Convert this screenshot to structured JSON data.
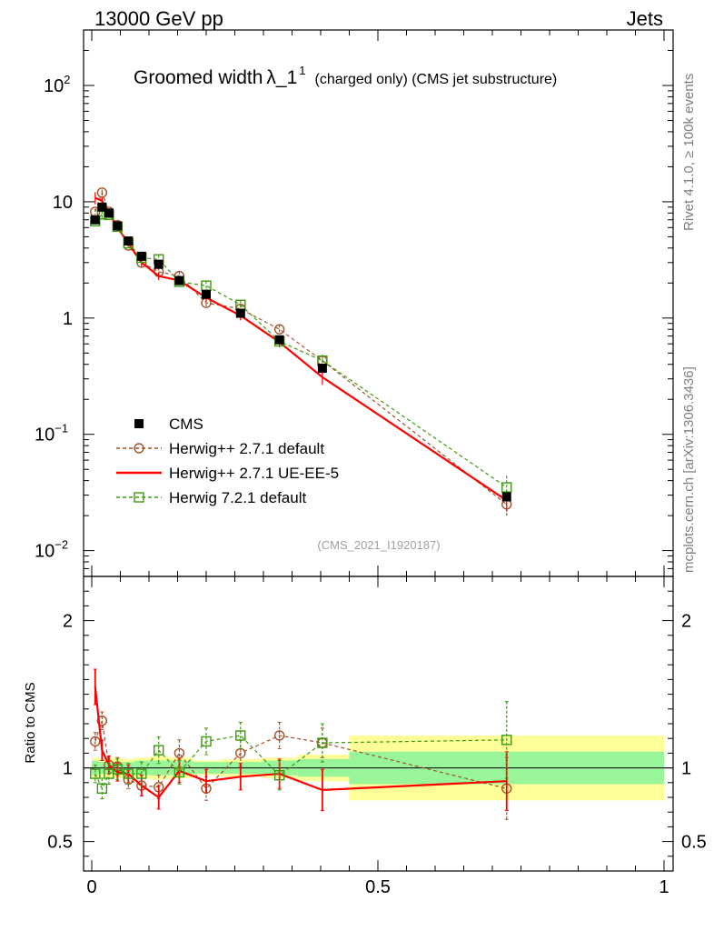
{
  "header": {
    "left": "13000 GeV pp",
    "right": "Jets",
    "side_top": "Rivet 4.1.0, ≥ 100k events",
    "side_bottom": "mcplots.cern.ch [arXiv:1306.3436]"
  },
  "chart_data": {
    "type": "line",
    "title_main": "Groomed width",
    "title_symbol": "λ_1",
    "title_superscript": "1",
    "title_sub": "(charged only) (CMS jet substructure)",
    "analysis_tag": "(CMS_2021_I1920187)",
    "x_range": [
      0,
      1
    ],
    "x_ticks": [
      {
        "value": 0,
        "label": "0"
      },
      {
        "value": 0.5,
        "label": "0.5"
      },
      {
        "value": 1,
        "label": "1"
      }
    ],
    "main_ylim": [
      0.006,
      300
    ],
    "main_y_ticks": [
      {
        "value": 100,
        "mant": "10",
        "exp": "2"
      },
      {
        "value": 10,
        "mant": "10",
        "exp": ""
      },
      {
        "value": 1,
        "mant": "1",
        "exp": ""
      },
      {
        "value": 0.1,
        "mant": "10",
        "exp": "−1"
      },
      {
        "value": 0.01,
        "mant": "10",
        "exp": "−2"
      }
    ],
    "ratio_ylabel": "Ratio to CMS",
    "ratio_ylim": [
      0.3,
      2.3
    ],
    "ratio_y_ticks": [
      {
        "value": 2,
        "label": "2"
      },
      {
        "value": 1,
        "label": "1"
      },
      {
        "value": 0.5,
        "label": "0.5"
      }
    ],
    "bins": [
      {
        "lo": 0.0,
        "hi": 0.012
      },
      {
        "lo": 0.012,
        "hi": 0.024
      },
      {
        "lo": 0.024,
        "hi": 0.036
      },
      {
        "lo": 0.036,
        "hi": 0.055
      },
      {
        "lo": 0.055,
        "hi": 0.074
      },
      {
        "lo": 0.074,
        "hi": 0.101
      },
      {
        "lo": 0.101,
        "hi": 0.135
      },
      {
        "lo": 0.135,
        "hi": 0.175
      },
      {
        "lo": 0.175,
        "hi": 0.225
      },
      {
        "lo": 0.225,
        "hi": 0.3
      },
      {
        "lo": 0.3,
        "hi": 0.36
      },
      {
        "lo": 0.36,
        "hi": 0.45
      },
      {
        "lo": 0.45,
        "hi": 1.0
      }
    ],
    "band_inner": [
      0.05,
      0.04,
      0.04,
      0.04,
      0.04,
      0.05,
      0.05,
      0.05,
      0.04,
      0.04,
      0.05,
      0.06,
      0.11
    ],
    "band_outer": [
      0.07,
      0.06,
      0.07,
      0.07,
      0.06,
      0.07,
      0.08,
      0.07,
      0.05,
      0.06,
      0.07,
      0.09,
      0.22
    ],
    "series": [
      {
        "name": "CMS",
        "kind": "data",
        "color": "#000000",
        "x": [
          0.006,
          0.018,
          0.03,
          0.045,
          0.064,
          0.087,
          0.117,
          0.153,
          0.2,
          0.26,
          0.328,
          0.403,
          0.725
        ],
        "y": [
          7.0,
          9.0,
          8.0,
          6.2,
          4.6,
          3.4,
          2.9,
          2.1,
          1.6,
          1.1,
          0.65,
          0.37,
          0.029
        ]
      },
      {
        "name": "Herwig++ 2.7.1 default",
        "kind": "circle",
        "color": "#a0522d",
        "x": [
          0.006,
          0.018,
          0.03,
          0.045,
          0.064,
          0.087,
          0.117,
          0.153,
          0.2,
          0.26,
          0.328,
          0.403,
          0.725
        ],
        "y": [
          8.2,
          12.0,
          8.2,
          6.3,
          4.2,
          3.0,
          2.5,
          2.3,
          1.35,
          1.2,
          0.8,
          0.43,
          0.025
        ],
        "ratio": [
          1.18,
          1.32,
          1.02,
          1.01,
          0.92,
          0.88,
          0.87,
          1.1,
          0.86,
          1.1,
          1.22,
          1.17,
          0.86
        ],
        "ratio_err": [
          0.06,
          0.06,
          0.06,
          0.06,
          0.06,
          0.07,
          0.08,
          0.09,
          0.08,
          0.09,
          0.09,
          0.1,
          0.21
        ]
      },
      {
        "name": "Herwig++ 2.7.1 UE-EE-5",
        "kind": "line",
        "color": "#ff0000",
        "x": [
          0.006,
          0.018,
          0.03,
          0.045,
          0.064,
          0.087,
          0.117,
          0.153,
          0.2,
          0.26,
          0.328,
          0.403,
          0.725
        ],
        "y": [
          10.8,
          10.2,
          8.0,
          6.0,
          4.4,
          3.0,
          2.3,
          2.1,
          1.5,
          1.05,
          0.62,
          0.31,
          0.027
        ],
        "ratio": [
          1.55,
          1.12,
          1.02,
          0.97,
          0.96,
          0.88,
          0.8,
          0.98,
          0.91,
          0.94,
          0.96,
          0.85,
          0.91
        ],
        "ratio_err": [
          0.12,
          0.07,
          0.06,
          0.06,
          0.06,
          0.07,
          0.08,
          0.08,
          0.08,
          0.09,
          0.1,
          0.14,
          0.2
        ]
      },
      {
        "name": "Herwig 7.2.1 default",
        "kind": "square",
        "color": "#3d9a0f",
        "x": [
          0.006,
          0.018,
          0.03,
          0.045,
          0.064,
          0.087,
          0.117,
          0.153,
          0.2,
          0.26,
          0.328,
          0.403,
          0.725
        ],
        "y": [
          6.8,
          7.8,
          7.7,
          6.1,
          4.4,
          3.3,
          3.2,
          2.05,
          1.9,
          1.3,
          0.63,
          0.43,
          0.035
        ],
        "ratio": [
          0.96,
          0.86,
          0.96,
          0.99,
          0.96,
          0.96,
          1.12,
          0.97,
          1.18,
          1.22,
          0.95,
          1.17,
          1.19
        ],
        "ratio_err": [
          0.06,
          0.07,
          0.07,
          0.07,
          0.07,
          0.08,
          0.09,
          0.08,
          0.09,
          0.09,
          0.1,
          0.13,
          0.26
        ]
      }
    ]
  }
}
